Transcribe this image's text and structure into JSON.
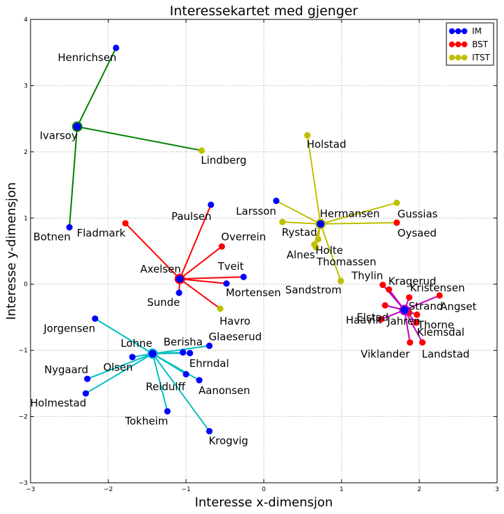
{
  "chart_data": {
    "type": "scatter",
    "title": "Interessekartet med gjenger",
    "xlabel": "Interesse x-dimensjon",
    "ylabel": "Interesse y-dimensjon",
    "xlim": [
      -3,
      3
    ],
    "ylim": [
      -3,
      4
    ],
    "x_ticks": [
      "−3",
      "−2",
      "−1",
      "0",
      "1",
      "2",
      "3"
    ],
    "y_ticks": [
      "−3",
      "−2",
      "−1",
      "0",
      "1",
      "2",
      "3",
      "4"
    ],
    "grid": true,
    "legend_position": "top-right",
    "legend": [
      {
        "name": "IM",
        "color": "#0000ff"
      },
      {
        "name": "BST",
        "color": "#ff0000"
      },
      {
        "name": "ITST",
        "color": "#bfbf00"
      }
    ],
    "colors": {
      "IM": "#0000ff",
      "BST": "#ff0000",
      "ITST": "#bfbf00"
    },
    "clusters": [
      {
        "center": {
          "name": "Ivarsoy",
          "x": -2.4,
          "y": 2.38
        },
        "line_color": "#008000",
        "members": [
          {
            "name": "Henrichsen",
            "group": "IM",
            "x": -1.9,
            "y": 3.57
          },
          {
            "name": "Lindberg",
            "group": "ITST",
            "x": -0.8,
            "y": 2.02
          },
          {
            "name": "Botnen",
            "group": "IM",
            "x": -2.5,
            "y": 0.86
          }
        ]
      },
      {
        "center": {
          "name": "Axelsen",
          "x": -1.08,
          "y": 0.08
        },
        "line_color": "#ff0000",
        "members": [
          {
            "name": "Paulsen",
            "group": "IM",
            "x": -0.68,
            "y": 1.2
          },
          {
            "name": "Fladmark",
            "group": "BST",
            "x": -1.78,
            "y": 0.92
          },
          {
            "name": "Overrein",
            "group": "BST",
            "x": -0.54,
            "y": 0.57
          },
          {
            "name": "Tveit",
            "group": "IM",
            "x": -0.26,
            "y": 0.11
          },
          {
            "name": "Mortensen",
            "group": "IM",
            "x": -0.48,
            "y": 0.01
          },
          {
            "name": "Sunde",
            "group": "IM",
            "x": -1.09,
            "y": -0.13
          },
          {
            "name": "Havro",
            "group": "ITST",
            "x": -0.56,
            "y": -0.37
          }
        ]
      },
      {
        "center": {
          "name": "Lohne",
          "x": -1.43,
          "y": -1.05
        },
        "line_color": "#00bfbf",
        "members": [
          {
            "name": "Jorgensen",
            "group": "IM",
            "x": -2.17,
            "y": -0.52
          },
          {
            "name": "Berisha",
            "group": "IM",
            "x": -1.04,
            "y": -1.03
          },
          {
            "name": "Glaeserud",
            "group": "IM",
            "x": -0.7,
            "y": -0.93
          },
          {
            "name": "Ehrndal",
            "group": "IM",
            "x": -0.95,
            "y": -1.04
          },
          {
            "name": "Olsen",
            "group": "IM",
            "x": -1.69,
            "y": -1.1
          },
          {
            "name": "Nygaard",
            "group": "IM",
            "x": -2.27,
            "y": -1.43
          },
          {
            "name": "Reidulff",
            "group": "IM",
            "x": -1.0,
            "y": -1.36
          },
          {
            "name": "Aanonsen",
            "group": "IM",
            "x": -0.83,
            "y": -1.45
          },
          {
            "name": "Holmestad",
            "group": "IM",
            "x": -2.29,
            "y": -1.65
          },
          {
            "name": "Tokheim",
            "group": "IM",
            "x": -1.24,
            "y": -1.92
          },
          {
            "name": "Krogvig",
            "group": "IM",
            "x": -0.7,
            "y": -2.22
          }
        ]
      },
      {
        "center": {
          "name": "Hermansen",
          "x": 0.73,
          "y": 0.91
        },
        "line_color": "#bfbf00",
        "members": [
          {
            "name": "Holstad",
            "group": "ITST",
            "x": 0.56,
            "y": 2.25
          },
          {
            "name": "Larsson",
            "group": "IM",
            "x": 0.16,
            "y": 1.26
          },
          {
            "name": "Gussias",
            "group": "ITST",
            "x": 1.71,
            "y": 1.23
          },
          {
            "name": "Rystad",
            "group": "ITST",
            "x": 0.24,
            "y": 0.94
          },
          {
            "name": "Oysaed",
            "group": "BST",
            "x": 1.71,
            "y": 0.93
          },
          {
            "name": "Holte",
            "group": "ITST",
            "x": 0.7,
            "y": 0.68
          },
          {
            "name": "Alnes",
            "group": "ITST",
            "x": 0.65,
            "y": 0.6
          },
          {
            "name": "Thomassen",
            "group": "ITST",
            "x": 0.67,
            "y": 0.56
          },
          {
            "name": "Sandstrom",
            "group": "ITST",
            "x": 0.99,
            "y": 0.05
          }
        ]
      },
      {
        "center": {
          "name": "Jahren",
          "x": 1.81,
          "y": -0.39
        },
        "line_color": "#bf00bf",
        "members": [
          {
            "name": "Thylin",
            "group": "BST",
            "x": 1.53,
            "y": -0.01
          },
          {
            "name": "Kragerud",
            "group": "BST",
            "x": 1.61,
            "y": -0.08
          },
          {
            "name": "Kristensen",
            "group": "BST",
            "x": 1.87,
            "y": -0.2
          },
          {
            "name": "Angset",
            "group": "BST",
            "x": 2.26,
            "y": -0.17
          },
          {
            "name": "Elstad",
            "group": "BST",
            "x": 1.56,
            "y": -0.32
          },
          {
            "name": "Strand",
            "group": "BST",
            "x": 1.87,
            "y": -0.43
          },
          {
            "name": "Haavik",
            "group": "BST",
            "x": 1.51,
            "y": -0.53
          },
          {
            "name": "Thorne",
            "group": "BST",
            "x": 1.97,
            "y": -0.46
          },
          {
            "name": "Klemsdal",
            "group": "BST",
            "x": 1.96,
            "y": -0.58
          },
          {
            "name": "Viklander",
            "group": "BST",
            "x": 1.88,
            "y": -0.88
          },
          {
            "name": "Landstad",
            "group": "BST",
            "x": 2.04,
            "y": -0.88
          }
        ]
      }
    ]
  }
}
